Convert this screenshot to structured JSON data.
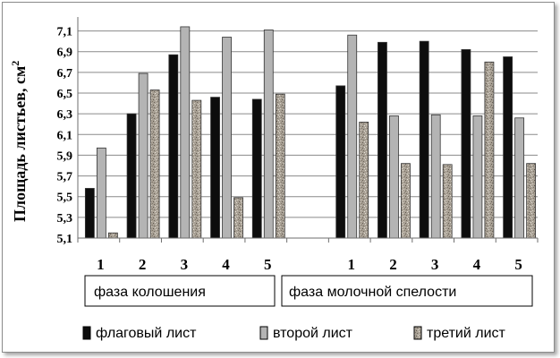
{
  "chart_data": {
    "type": "bar",
    "ylabel": "Площадь листьев, см",
    "ylabel_superscript": "2",
    "ylim": [
      5.1,
      7.2
    ],
    "yticks": [
      "5,1",
      "5,3",
      "5,5",
      "5,7",
      "5,9",
      "6,1",
      "6,3",
      "6,5",
      "6,7",
      "6,9",
      "7,1"
    ],
    "ytick_values": [
      5.1,
      5.3,
      5.5,
      5.7,
      5.9,
      6.1,
      6.3,
      6.5,
      6.7,
      6.9,
      7.1
    ],
    "grid": true,
    "categories": [
      "1",
      "2",
      "3",
      "4",
      "5",
      "",
      "1",
      "2",
      "3",
      "4",
      "5"
    ],
    "series": [
      {
        "name": "флаговый лист",
        "color": "#0d0d0d",
        "values": [
          5.58,
          6.3,
          6.87,
          6.46,
          6.44,
          null,
          6.57,
          6.99,
          7.0,
          6.92,
          6.85
        ]
      },
      {
        "name": "второй лист",
        "color": "#b4b4b4",
        "values": [
          5.97,
          6.69,
          7.14,
          7.04,
          7.11,
          null,
          7.06,
          6.28,
          6.29,
          6.28,
          6.26
        ]
      },
      {
        "name": "третий лист",
        "color": "#a59d91",
        "values": [
          5.15,
          6.53,
          6.43,
          5.49,
          6.49,
          null,
          6.22,
          5.82,
          5.81,
          6.8,
          5.82
        ]
      }
    ],
    "groups": [
      {
        "label": "фаза колошения"
      },
      {
        "label": "фаза молочной спелости"
      }
    ],
    "legend_position": "bottom"
  }
}
